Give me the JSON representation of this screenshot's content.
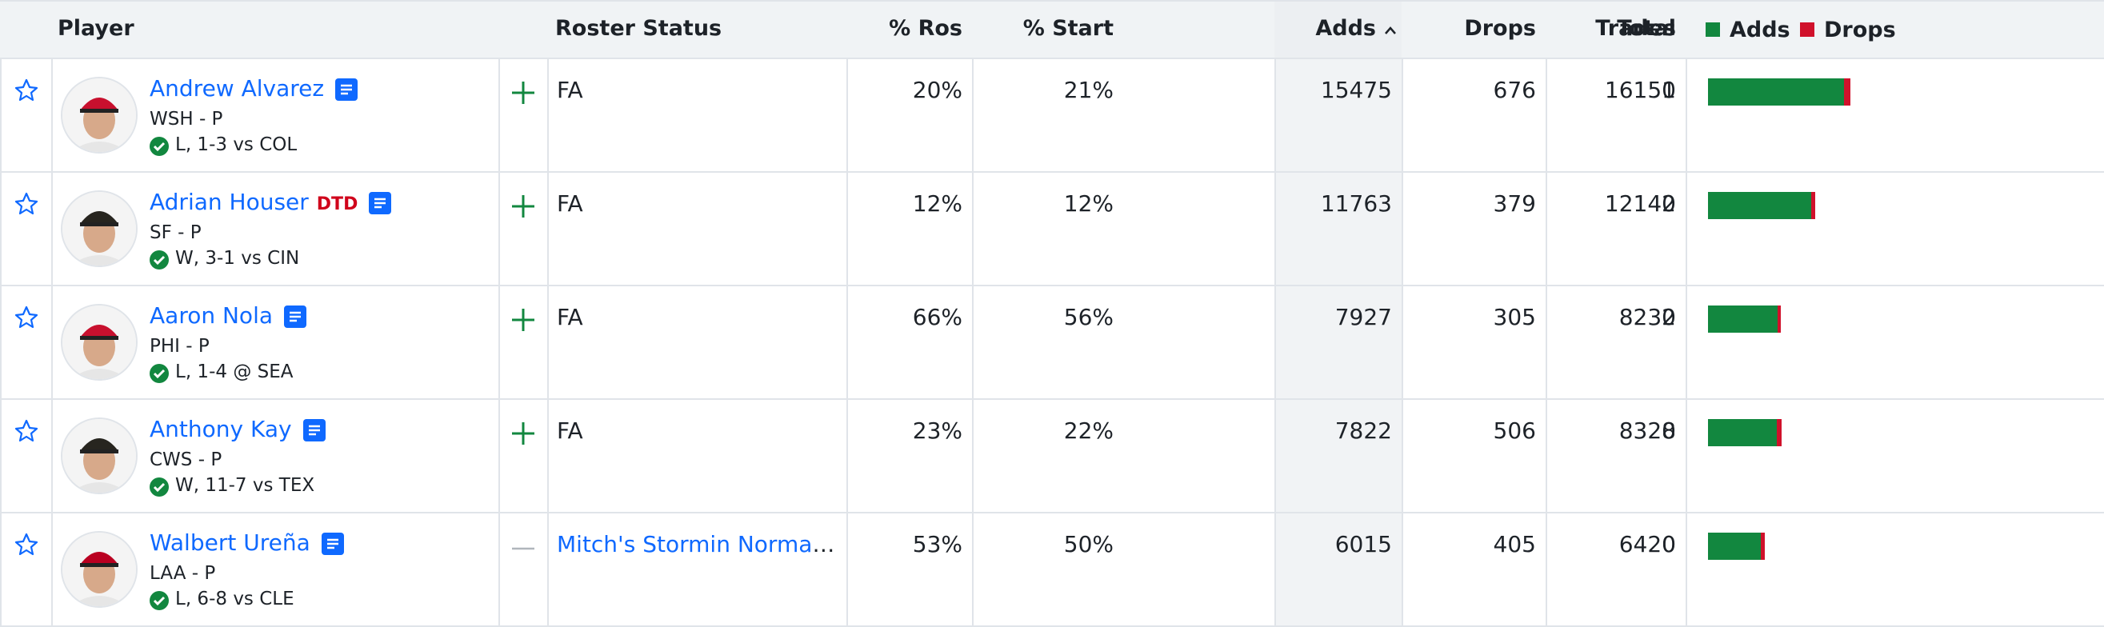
{
  "header": {
    "player": "Player",
    "roster_status": "Roster Status",
    "pct_ros": "% Ros",
    "pct_start": "% Start",
    "adds": "Adds",
    "drops": "Drops",
    "trades": "Trades",
    "total": "Total",
    "legend": {
      "adds": "Adds",
      "drops": "Drops"
    }
  },
  "rows": [
    {
      "name": "Andrew Alvarez",
      "tag": null,
      "team_pos": "WSH - P",
      "game": "L, 1-3 vs COL",
      "roster_status": "FA",
      "pct_ros": "20%",
      "pct_start": "21%",
      "adds": 15475,
      "drops": 676,
      "trades": 0,
      "total": 16151
    },
    {
      "name": "Adrian Houser",
      "tag": "DTD",
      "team_pos": "SF - P",
      "game": "W, 3-1 vs CIN",
      "roster_status": "FA",
      "pct_ros": "12%",
      "pct_start": "12%",
      "adds": 11763,
      "drops": 379,
      "trades": 0,
      "total": 12142
    },
    {
      "name": "Aaron Nola",
      "tag": null,
      "team_pos": "PHI - P",
      "game": "L, 1-4 @ SEA",
      "roster_status": "FA",
      "pct_ros": "66%",
      "pct_start": "56%",
      "adds": 7927,
      "drops": 305,
      "trades": 0,
      "total": 8232
    },
    {
      "name": "Anthony Kay",
      "tag": null,
      "team_pos": "CWS - P",
      "game": "W, 11-7 vs TEX",
      "roster_status": "FA",
      "pct_ros": "23%",
      "pct_start": "22%",
      "adds": 7822,
      "drops": 506,
      "trades": 0,
      "total": 8328
    },
    {
      "name": "Walbert Ureña",
      "tag": null,
      "team_pos": "LAA - P",
      "game": "L, 6-8 vs CLE",
      "roster_status": "Mitch's Stormin Norman Gators",
      "pct_ros": "53%",
      "pct_start": "50%",
      "adds": 6015,
      "drops": 405,
      "trades": 0,
      "total": 6420
    }
  ]
}
